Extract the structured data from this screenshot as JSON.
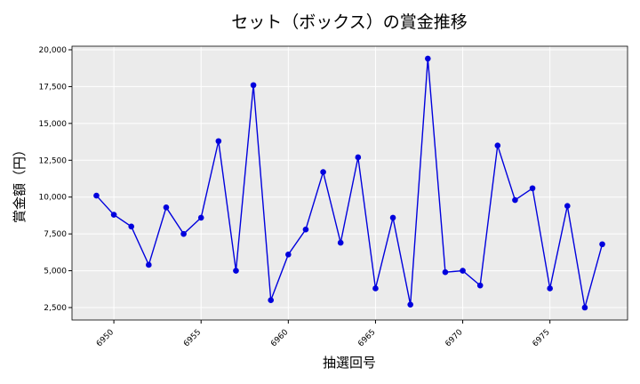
{
  "chart_data": {
    "type": "line",
    "title": "セット（ボックス）の賞金推移",
    "xlabel": "抽選回号",
    "ylabel": "賞金額（円）",
    "x": [
      6949,
      6950,
      6951,
      6952,
      6953,
      6954,
      6955,
      6956,
      6957,
      6958,
      6959,
      6960,
      6961,
      6962,
      6963,
      6964,
      6965,
      6966,
      6967,
      6968,
      6969,
      6970,
      6971,
      6972,
      6973,
      6974,
      6975,
      6976,
      6977,
      6978
    ],
    "values": [
      10100,
      8800,
      8000,
      5400,
      9300,
      7500,
      8600,
      13800,
      5000,
      17600,
      3000,
      6100,
      7800,
      11700,
      6900,
      12700,
      3800,
      8600,
      2700,
      19400,
      4900,
      5000,
      4000,
      13500,
      9800,
      10600,
      3800,
      9400,
      2500,
      6800
    ],
    "color": "#0000dd",
    "xlim": [
      6947.6,
      6979.45
    ],
    "ylim": [
      1655,
      20241
    ],
    "xticks": [
      6950,
      6955,
      6960,
      6965,
      6970,
      6975
    ],
    "yticks": [
      {
        "value": 2500,
        "label": "2,500"
      },
      {
        "value": 5000,
        "label": "5,000"
      },
      {
        "value": 7500,
        "label": "7,500"
      },
      {
        "value": 10000,
        "label": "10,000"
      },
      {
        "value": 12500,
        "label": "12,500"
      },
      {
        "value": 15000,
        "label": "15,000"
      },
      {
        "value": 17500,
        "label": "17,500"
      },
      {
        "value": 20000,
        "label": "20,000"
      }
    ],
    "grid": true
  }
}
